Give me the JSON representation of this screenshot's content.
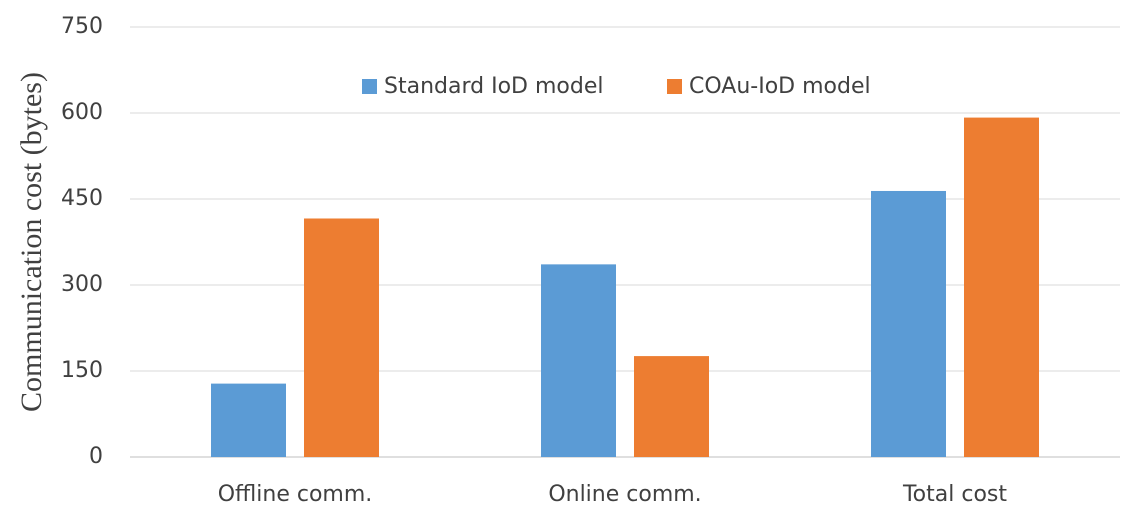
{
  "chart_data": {
    "type": "bar",
    "y_label": "Communication cost (bytes)",
    "categories": [
      "Offline comm.",
      "Online comm.",
      "Total cost"
    ],
    "series": [
      {
        "name": "Standard IoD model",
        "color": "#5b9bd5",
        "values": [
          128,
          336,
          464
        ]
      },
      {
        "name": "COAu-IoD model",
        "color": "#ed7d31",
        "values": [
          416,
          176,
          592
        ]
      }
    ],
    "ylim": [
      0,
      750
    ],
    "yticks": [
      0,
      150,
      300,
      450,
      600,
      750
    ],
    "grid": true,
    "legend": "top"
  }
}
